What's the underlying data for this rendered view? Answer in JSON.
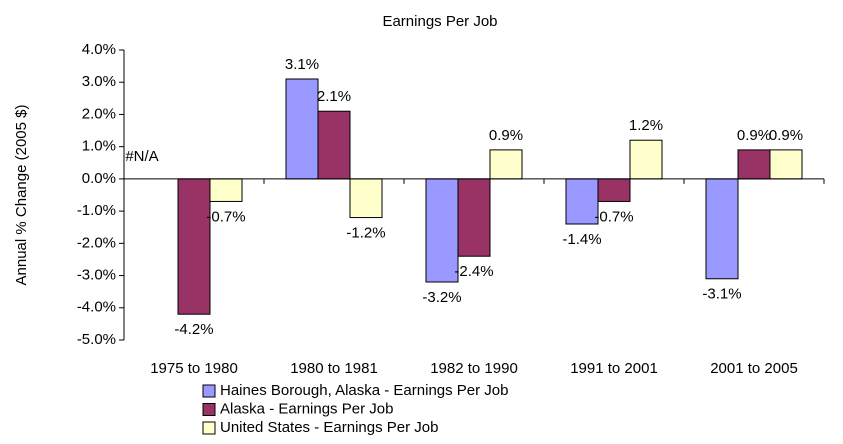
{
  "chart_data": {
    "type": "bar",
    "title": "Earnings Per Job",
    "y_label": "Annual % Change (2005 $)",
    "categories": [
      "1975 to 1980",
      "1980 to 1981",
      "1982 to 1990",
      "1991 to 2001",
      "2001 to 2005"
    ],
    "series": [
      {
        "name": "Haines Borough, Alaska - Earnings Per Job",
        "color": "#9999ff",
        "values": [
          null,
          3.1,
          -3.2,
          -1.4,
          -3.1
        ],
        "value_labels": [
          "#N/A",
          "3.1%",
          "-3.2%",
          "-1.4%",
          "-3.1%"
        ]
      },
      {
        "name": "Alaska - Earnings Per Job",
        "color": "#993366",
        "values": [
          -4.2,
          2.1,
          -2.4,
          -0.7,
          0.9
        ],
        "value_labels": [
          "-4.2%",
          "2.1%",
          "-2.4%",
          "-0.7%",
          "0.9%"
        ]
      },
      {
        "name": "United States - Earnings Per Job",
        "color": "#ffffcc",
        "values": [
          -0.7,
          -1.2,
          0.9,
          1.2,
          0.9
        ],
        "value_labels": [
          "-0.7%",
          "-1.2%",
          "0.9%",
          "1.2%",
          "0.9%"
        ]
      }
    ],
    "ylim": [
      -5,
      4
    ],
    "yticks": [
      {
        "value": 4,
        "label": "4.0%"
      },
      {
        "value": 3,
        "label": "3.0%"
      },
      {
        "value": 2,
        "label": "2.0%"
      },
      {
        "value": 1,
        "label": "1.0%"
      },
      {
        "value": 0,
        "label": "0.0%"
      },
      {
        "value": -1,
        "label": "-1.0%"
      },
      {
        "value": -2,
        "label": "-2.0%"
      },
      {
        "value": -3,
        "label": "-3.0%"
      },
      {
        "value": -4,
        "label": "-4.0%"
      },
      {
        "value": -5,
        "label": "-5.0%"
      }
    ],
    "legend": "bottom"
  }
}
